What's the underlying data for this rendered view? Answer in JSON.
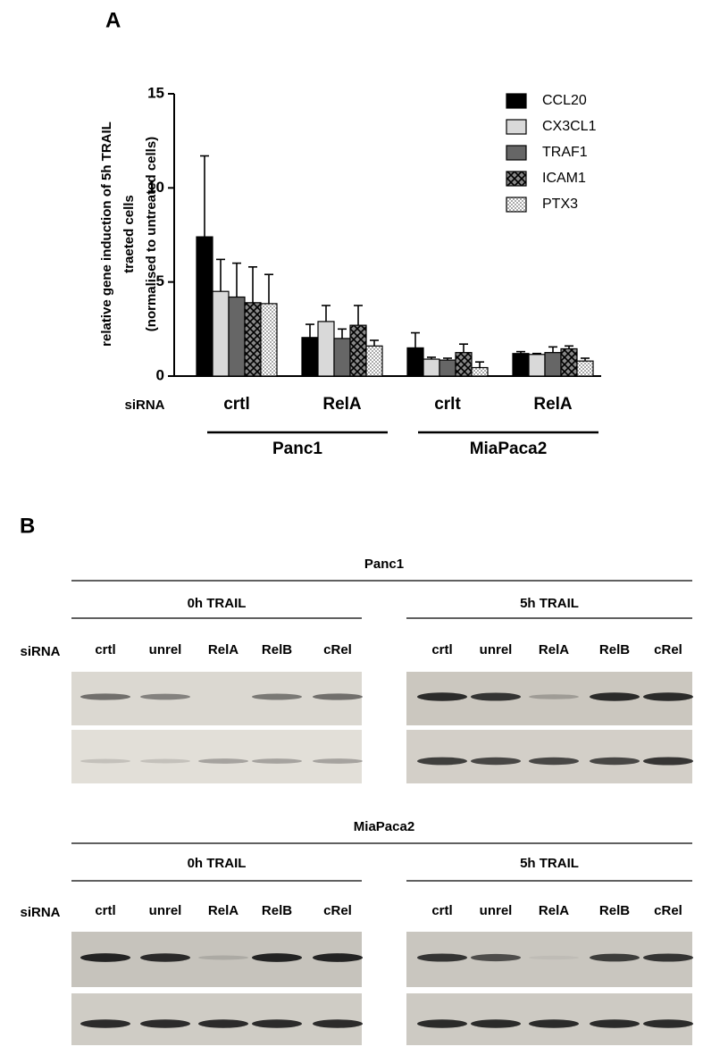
{
  "panel_a": {
    "label": "A"
  },
  "chart_data": {
    "type": "bar",
    "y_label": [
      "relative gene induction of 5h TRAIL",
      "traeted cells",
      "(normalised to untreated cells)"
    ],
    "x_prefix": "siRNA",
    "categories": [
      "crtl",
      "RelA",
      "crlt",
      "RelA"
    ],
    "groups": [
      "Panc1",
      "MiaPaca2"
    ],
    "series": [
      {
        "name": "CCL20",
        "color": "#000000",
        "values": [
          7.4,
          2.05,
          1.5,
          1.2
        ],
        "errors": [
          4.3,
          0.7,
          0.8,
          0.1
        ]
      },
      {
        "name": "CX3CL1",
        "color": "#d9d9d9",
        "values": [
          4.5,
          2.9,
          0.9,
          1.15
        ],
        "errors": [
          1.7,
          0.85,
          0.1,
          0.05
        ]
      },
      {
        "name": "TRAF1",
        "color": "#666666",
        "values": [
          4.2,
          2.0,
          0.85,
          1.25
        ],
        "errors": [
          1.8,
          0.5,
          0.1,
          0.3
        ]
      },
      {
        "name": "ICAM1",
        "color": "#888888",
        "pattern": "crosshatch",
        "values": [
          3.9,
          2.7,
          1.25,
          1.45
        ],
        "errors": [
          1.9,
          1.05,
          0.45,
          0.15
        ]
      },
      {
        "name": "PTX3",
        "color": "#aaaaaa",
        "pattern": "checker",
        "values": [
          3.85,
          1.6,
          0.45,
          0.8
        ],
        "errors": [
          1.55,
          0.3,
          0.3,
          0.15
        ]
      }
    ],
    "ylim": [
      0,
      15
    ],
    "yticks": [
      0,
      5,
      10,
      15
    ],
    "legend": "upper right"
  },
  "panel_b": {
    "label": "B",
    "sections": [
      {
        "title": "Panc1",
        "sirna_label": "siRNA",
        "conditions": [
          {
            "title": "0h TRAIL",
            "lanes": [
              "crtl",
              "unrel",
              "RelA",
              "RelB",
              "cRel"
            ]
          },
          {
            "title": "5h TRAIL",
            "lanes": [
              "crtl",
              "unrel",
              "RelA",
              "RelB",
              "cRel"
            ]
          }
        ]
      },
      {
        "title": "MiaPaca2",
        "sirna_label": "siRNA",
        "conditions": [
          {
            "title": "0h TRAIL",
            "lanes": [
              "crtl",
              "unrel",
              "RelA",
              "RelB",
              "cRel"
            ]
          },
          {
            "title": "5h TRAIL",
            "lanes": [
              "crtl",
              "unrel",
              "RelA",
              "RelB",
              "cRel"
            ]
          }
        ]
      }
    ]
  }
}
